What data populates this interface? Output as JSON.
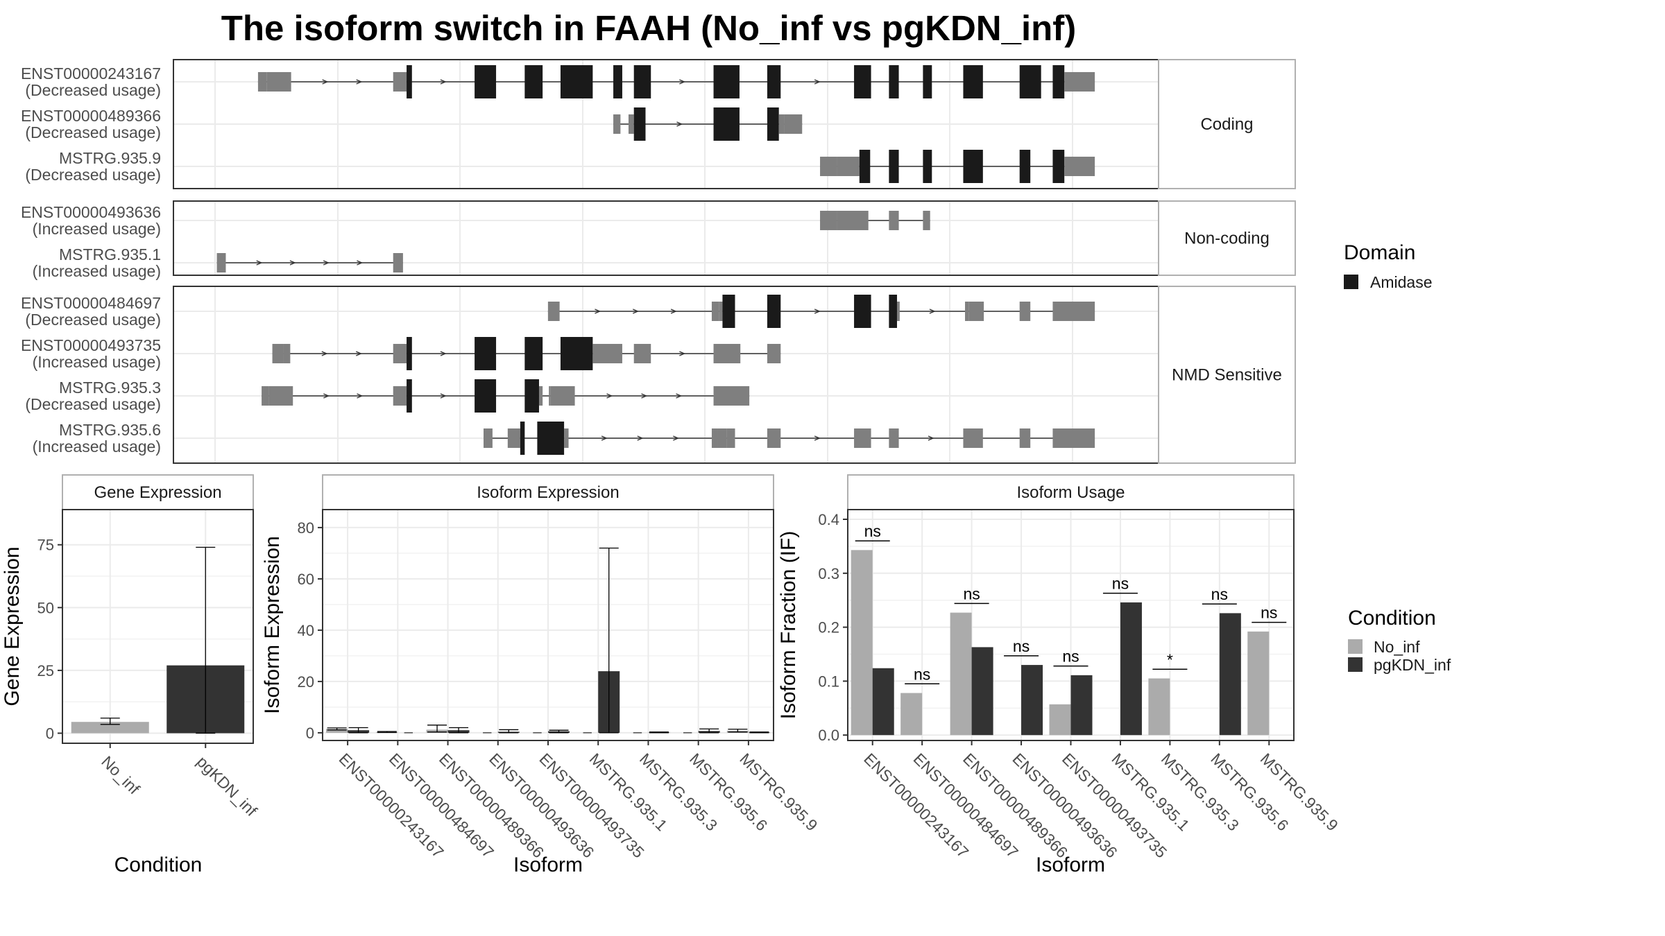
{
  "title": "The isoform switch in FAAH (No_inf vs pgKDN_inf)",
  "colors": {
    "cds": "#1a1a1a",
    "utr": "#7f7f7f",
    "no_inf": "#ababab",
    "pgkdn_inf": "#333333",
    "grid": "#ebebeb",
    "panel_border": "#333333",
    "strip_border": "#b0b0b0"
  },
  "transcript_panel": {
    "genome_span": [
      0,
      1000
    ],
    "groups": [
      {
        "label": "Coding",
        "transcripts": [
          {
            "id": "ENST00000243167",
            "usage": "(Decreased usage)",
            "exons": [
              [
                48,
                58,
                "u"
              ],
              [
                58,
                85,
                "u"
              ],
              [
                199,
                214,
                "u"
              ],
              [
                214,
                220,
                "c"
              ],
              [
                290,
                314,
                "c"
              ],
              [
                346,
                366,
                "c"
              ],
              [
                386,
                422,
                "c"
              ],
              [
                445,
                455,
                "c"
              ],
              [
                468,
                487,
                "c"
              ],
              [
                557,
                586,
                "c"
              ],
              [
                617,
                632,
                "c"
              ],
              [
                714,
                733,
                "c"
              ],
              [
                753,
                764,
                "c"
              ],
              [
                791,
                801,
                "c"
              ],
              [
                836,
                858,
                "c"
              ],
              [
                899,
                923,
                "c"
              ],
              [
                936,
                949,
                "c"
              ],
              [
                949,
                983,
                "u"
              ]
            ]
          },
          {
            "id": "ENST00000489366",
            "usage": "(Decreased usage)",
            "exons": [
              [
                445,
                453,
                "u"
              ],
              [
                462,
                468,
                "u"
              ],
              [
                468,
                481,
                "c"
              ],
              [
                557,
                586,
                "c"
              ],
              [
                617,
                630,
                "c"
              ],
              [
                630,
                636,
                "u"
              ],
              [
                636,
                656,
                "u"
              ]
            ]
          },
          {
            "id": "MSTRG.935.9",
            "usage": "(Decreased usage)",
            "exons": [
              [
                676,
                695,
                "u"
              ],
              [
                695,
                720,
                "u"
              ],
              [
                720,
                732,
                "c"
              ],
              [
                753,
                764,
                "c"
              ],
              [
                791,
                801,
                "c"
              ],
              [
                836,
                858,
                "c"
              ],
              [
                899,
                911,
                "c"
              ],
              [
                936,
                949,
                "c"
              ],
              [
                949,
                983,
                "u"
              ]
            ]
          }
        ]
      },
      {
        "label": "Non-coding",
        "transcripts": [
          {
            "id": "ENST00000493636",
            "usage": "(Increased usage)",
            "exons": [
              [
                676,
                695,
                "u"
              ],
              [
                695,
                730,
                "u"
              ],
              [
                753,
                764,
                "u"
              ],
              [
                791,
                799,
                "u"
              ]
            ]
          },
          {
            "id": "MSTRG.935.1",
            "usage": "(Increased usage)",
            "exons": [
              [
                2,
                12,
                "u"
              ],
              [
                199,
                210,
                "u"
              ]
            ]
          }
        ]
      },
      {
        "label": "NMD Sensitive",
        "transcripts": [
          {
            "id": "ENST00000484697",
            "usage": "(Decreased usage)",
            "exons": [
              [
                372,
                385,
                "u"
              ],
              [
                555,
                563,
                "u"
              ],
              [
                563,
                567,
                "u"
              ],
              [
                567,
                581,
                "c"
              ],
              [
                617,
                632,
                "c"
              ],
              [
                714,
                733,
                "c"
              ],
              [
                753,
                762,
                "c"
              ],
              [
                762,
                765,
                "u"
              ],
              [
                838,
                842,
                "u"
              ],
              [
                842,
                859,
                "u"
              ],
              [
                899,
                911,
                "u"
              ],
              [
                936,
                983,
                "u"
              ]
            ]
          },
          {
            "id": "ENST00000493735",
            "usage": "(Increased usage)",
            "exons": [
              [
                64,
                76,
                "u"
              ],
              [
                76,
                84,
                "u"
              ],
              [
                199,
                214,
                "u"
              ],
              [
                214,
                220,
                "c"
              ],
              [
                290,
                314,
                "c"
              ],
              [
                346,
                366,
                "c"
              ],
              [
                386,
                422,
                "c"
              ],
              [
                422,
                455,
                "u"
              ],
              [
                468,
                487,
                "u"
              ],
              [
                557,
                587,
                "u"
              ],
              [
                617,
                632,
                "u"
              ]
            ]
          },
          {
            "id": "MSTRG.935.3",
            "usage": "(Decreased usage)",
            "exons": [
              [
                52,
                60,
                "u"
              ],
              [
                60,
                87,
                "u"
              ],
              [
                199,
                214,
                "u"
              ],
              [
                214,
                220,
                "c"
              ],
              [
                290,
                314,
                "c"
              ],
              [
                346,
                362,
                "c"
              ],
              [
                362,
                366,
                "u"
              ],
              [
                373,
                375,
                "u"
              ],
              [
                375,
                402,
                "u"
              ],
              [
                557,
                597,
                "u"
              ]
            ]
          },
          {
            "id": "MSTRG.935.6",
            "usage": "(Increased usage)",
            "exons": [
              [
                300,
                310,
                "u"
              ],
              [
                327,
                341,
                "u"
              ],
              [
                341,
                346,
                "c"
              ],
              [
                360,
                390,
                "c"
              ],
              [
                390,
                395,
                "u"
              ],
              [
                555,
                562,
                "u"
              ],
              [
                562,
                572,
                "u"
              ],
              [
                572,
                581,
                "u"
              ],
              [
                617,
                632,
                "u"
              ],
              [
                714,
                733,
                "u"
              ],
              [
                753,
                764,
                "u"
              ],
              [
                836,
                858,
                "u"
              ],
              [
                899,
                911,
                "u"
              ],
              [
                936,
                983,
                "u"
              ]
            ]
          }
        ]
      }
    ]
  },
  "legend_domain": {
    "title": "Domain",
    "entry": "Amidase"
  },
  "legend_condition": {
    "title": "Condition",
    "entries": [
      "No_inf",
      "pgKDN_inf"
    ]
  },
  "chart_data": [
    {
      "type": "bar",
      "title": "Gene Expression",
      "xlabel": "Condition",
      "ylabel": "Gene Expression",
      "categories": [
        "No_inf",
        "pgKDN_inf"
      ],
      "values": [
        4.5,
        27
      ],
      "error": [
        [
          3.5,
          6
        ],
        [
          0,
          74
        ]
      ],
      "ylim": [
        -4,
        89
      ],
      "yticks": [
        0,
        25,
        50,
        75
      ]
    },
    {
      "type": "bar",
      "title": "Isoform Expression",
      "xlabel": "Isoform",
      "ylabel": "Isoform Expression",
      "categories": [
        "ENST00000243167",
        "ENST00000484697",
        "ENST00000489366",
        "ENST00000493636",
        "ENST00000493735",
        "MSTRG.935.1",
        "MSTRG.935.3",
        "MSTRG.935.6",
        "MSTRG.935.9"
      ],
      "series": [
        {
          "name": "No_inf",
          "values": [
            1.5,
            0.3,
            1.2,
            0,
            0,
            0,
            0,
            0,
            0.8
          ],
          "error": [
            [
              1.1,
              1.9
            ],
            [
              0.1,
              0.5
            ],
            [
              0.3,
              3
            ],
            [
              0,
              0
            ],
            [
              0,
              0
            ],
            [
              0,
              0
            ],
            [
              0,
              0
            ],
            [
              0,
              0
            ],
            [
              0.3,
              1.4
            ]
          ]
        },
        {
          "name": "pgKDN_inf",
          "values": [
            1,
            0,
            1,
            0.4,
            0.6,
            24,
            0.1,
            0.7,
            0.1
          ],
          "error": [
            [
              0,
              2
            ],
            [
              0,
              0
            ],
            [
              0,
              2
            ],
            [
              0,
              1.2
            ],
            [
              0,
              1
            ],
            [
              0,
              72
            ],
            [
              0,
              0.3
            ],
            [
              0,
              1.5
            ],
            [
              0,
              0.3
            ]
          ]
        }
      ],
      "ylim": [
        -3,
        87
      ],
      "yticks": [
        0,
        20,
        40,
        60,
        80
      ]
    },
    {
      "type": "bar",
      "title": "Isoform Usage",
      "xlabel": "Isoform",
      "ylabel": "Isoform Fraction (IF)",
      "categories": [
        "ENST00000243167",
        "ENST00000484697",
        "ENST00000489366",
        "ENST00000493636",
        "ENST00000493735",
        "MSTRG.935.1",
        "MSTRG.935.3",
        "MSTRG.935.6",
        "MSTRG.935.9"
      ],
      "series": [
        {
          "name": "No_inf",
          "values": [
            0.343,
            0.078,
            0.227,
            0,
            0.057,
            0,
            0.105,
            0,
            0.192
          ]
        },
        {
          "name": "pgKDN_inf",
          "values": [
            0.124,
            0,
            0.163,
            0.13,
            0.111,
            0.246,
            0,
            0.226,
            0
          ]
        }
      ],
      "significance": [
        {
          "label": "ns",
          "y": 0.36
        },
        {
          "label": "ns",
          "y": 0.095
        },
        {
          "label": "ns",
          "y": 0.244
        },
        {
          "label": "ns",
          "y": 0.147
        },
        {
          "label": "ns",
          "y": 0.128
        },
        {
          "label": "ns",
          "y": 0.263
        },
        {
          "label": "*",
          "y": 0.122
        },
        {
          "label": "ns",
          "y": 0.243
        },
        {
          "label": "ns",
          "y": 0.209
        }
      ],
      "ylim": [
        -0.01,
        0.418
      ],
      "yticks": [
        0.0,
        0.1,
        0.2,
        0.3,
        0.4
      ]
    }
  ]
}
